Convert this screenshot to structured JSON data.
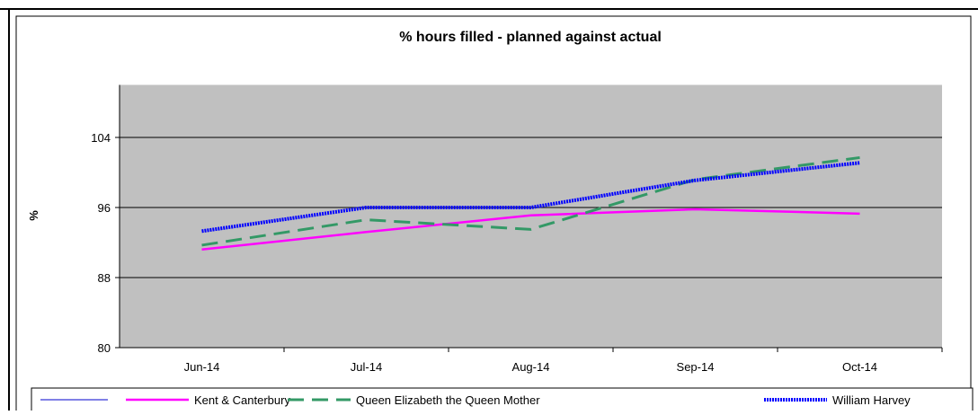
{
  "chart_data": {
    "type": "line",
    "title": "% hours filled - planned against actual",
    "y_label": "%",
    "categories": [
      "Jun-14",
      "Jul-14",
      "Aug-14",
      "Sep-14",
      "Oct-14"
    ],
    "series": [
      {
        "name": "Kent & Canterbury",
        "color": "#ff00ff",
        "style": "solid",
        "values": [
          91.2,
          93.2,
          95.1,
          95.8,
          95.3
        ]
      },
      {
        "name": "Queen Elizabeth the Queen Mother",
        "color": "#339966",
        "style": "dashed",
        "values": [
          91.7,
          94.6,
          93.5,
          99.2,
          101.7
        ]
      },
      {
        "name": "William Harvey",
        "color": "#0000ff",
        "style": "dotted",
        "values": [
          93.3,
          96.0,
          96.0,
          99.1,
          101.1
        ]
      }
    ],
    "ylim": [
      80,
      110
    ],
    "yticks": [
      80,
      88,
      96,
      104
    ],
    "grid": true,
    "legend": "bottom"
  }
}
